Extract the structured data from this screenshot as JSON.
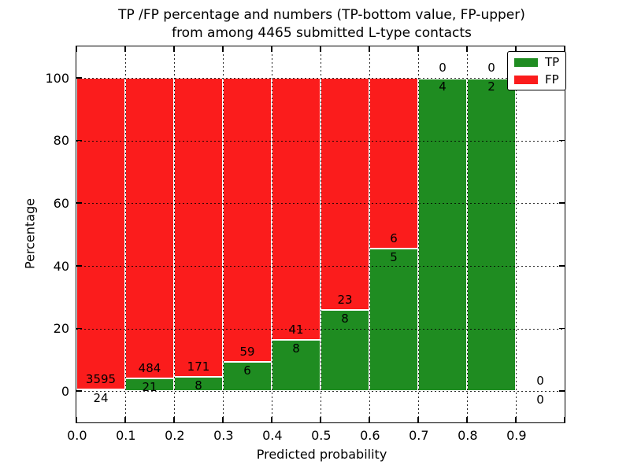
{
  "chart_data": {
    "type": "bar",
    "stacked": true,
    "title_line1": "TP /FP percentage and numbers (TP-bottom value, FP-upper)",
    "title_line2": "from among 4465 submitted L-type contacts",
    "xlabel": "Predicted probability",
    "ylabel": "Percentage",
    "xlim": [
      0.0,
      1.0
    ],
    "ylim": [
      -10,
      110
    ],
    "grid": true,
    "colors": {
      "tp": "#1f8c21",
      "fp": "#fb1c1c"
    },
    "legend": {
      "position": "upper right",
      "entries": [
        {
          "label": "TP",
          "color": "#1f8c21"
        },
        {
          "label": "FP",
          "color": "#fb1c1c"
        }
      ]
    },
    "xticks": [
      {
        "v": 0.0,
        "label": "0.0"
      },
      {
        "v": 0.1,
        "label": "0.1"
      },
      {
        "v": 0.2,
        "label": "0.2"
      },
      {
        "v": 0.3,
        "label": "0.3"
      },
      {
        "v": 0.4,
        "label": "0.4"
      },
      {
        "v": 0.5,
        "label": "0.5"
      },
      {
        "v": 0.6,
        "label": "0.6"
      },
      {
        "v": 0.7,
        "label": "0.7"
      },
      {
        "v": 0.8,
        "label": "0.8"
      },
      {
        "v": 0.9,
        "label": "0.9"
      },
      {
        "v": 1.0,
        "label": ""
      }
    ],
    "yticks": [
      {
        "v": 0,
        "label": "0"
      },
      {
        "v": 20,
        "label": "20"
      },
      {
        "v": 40,
        "label": "40"
      },
      {
        "v": 60,
        "label": "60"
      },
      {
        "v": 80,
        "label": "80"
      },
      {
        "v": 100,
        "label": "100"
      }
    ],
    "bins": [
      {
        "range": "0.0-0.1",
        "x0": 0.0,
        "x1": 0.1,
        "tp": 24,
        "fp": 3595,
        "tp_pct": 0.66
      },
      {
        "range": "0.1-0.2",
        "x0": 0.1,
        "x1": 0.2,
        "tp": 21,
        "fp": 484,
        "tp_pct": 4.16
      },
      {
        "range": "0.2-0.3",
        "x0": 0.2,
        "x1": 0.3,
        "tp": 8,
        "fp": 171,
        "tp_pct": 4.47
      },
      {
        "range": "0.3-0.4",
        "x0": 0.3,
        "x1": 0.4,
        "tp": 6,
        "fp": 59,
        "tp_pct": 9.23
      },
      {
        "range": "0.4-0.5",
        "x0": 0.4,
        "x1": 0.5,
        "tp": 8,
        "fp": 41,
        "tp_pct": 16.33
      },
      {
        "range": "0.5-0.6",
        "x0": 0.5,
        "x1": 0.6,
        "tp": 8,
        "fp": 23,
        "tp_pct": 25.81
      },
      {
        "range": "0.6-0.7",
        "x0": 0.6,
        "x1": 0.7,
        "tp": 5,
        "fp": 6,
        "tp_pct": 45.45
      },
      {
        "range": "0.7-0.8",
        "x0": 0.7,
        "x1": 0.8,
        "tp": 4,
        "fp": 0,
        "tp_pct": 100
      },
      {
        "range": "0.8-0.9",
        "x0": 0.8,
        "x1": 0.9,
        "tp": 2,
        "fp": 0,
        "tp_pct": 100
      },
      {
        "range": "0.9-1.0",
        "x0": 0.9,
        "x1": 1.0,
        "tp": 0,
        "fp": 0,
        "tp_pct": null
      }
    ]
  }
}
